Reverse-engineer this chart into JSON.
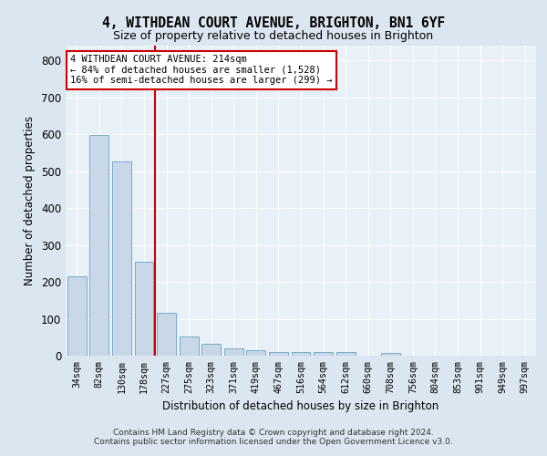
{
  "title1": "4, WITHDEAN COURT AVENUE, BRIGHTON, BN1 6YF",
  "title2": "Size of property relative to detached houses in Brighton",
  "xlabel": "Distribution of detached houses by size in Brighton",
  "ylabel": "Number of detached properties",
  "categories": [
    "34sqm",
    "82sqm",
    "130sqm",
    "178sqm",
    "227sqm",
    "275sqm",
    "323sqm",
    "371sqm",
    "419sqm",
    "467sqm",
    "516sqm",
    "564sqm",
    "612sqm",
    "660sqm",
    "708sqm",
    "756sqm",
    "804sqm",
    "853sqm",
    "901sqm",
    "949sqm",
    "997sqm"
  ],
  "values": [
    215,
    598,
    525,
    255,
    115,
    52,
    31,
    20,
    15,
    10,
    10,
    10,
    10,
    0,
    8,
    0,
    0,
    0,
    0,
    0,
    0
  ],
  "bar_color": "#c8d8e8",
  "bar_edge_color": "#7aaac8",
  "vline_color": "#cc0000",
  "vline_pos": 3.5,
  "annotation_text": "4 WITHDEAN COURT AVENUE: 214sqm\n← 84% of detached houses are smaller (1,528)\n16% of semi-detached houses are larger (299) →",
  "annotation_box_color": "#ffffff",
  "annotation_box_edge_color": "#cc0000",
  "ylim": [
    0,
    840
  ],
  "yticks": [
    0,
    100,
    200,
    300,
    400,
    500,
    600,
    700,
    800
  ],
  "footer1": "Contains HM Land Registry data © Crown copyright and database right 2024.",
  "footer2": "Contains public sector information licensed under the Open Government Licence v3.0.",
  "bg_color": "#dce6f0",
  "plot_bg_color": "#e8f0f8"
}
